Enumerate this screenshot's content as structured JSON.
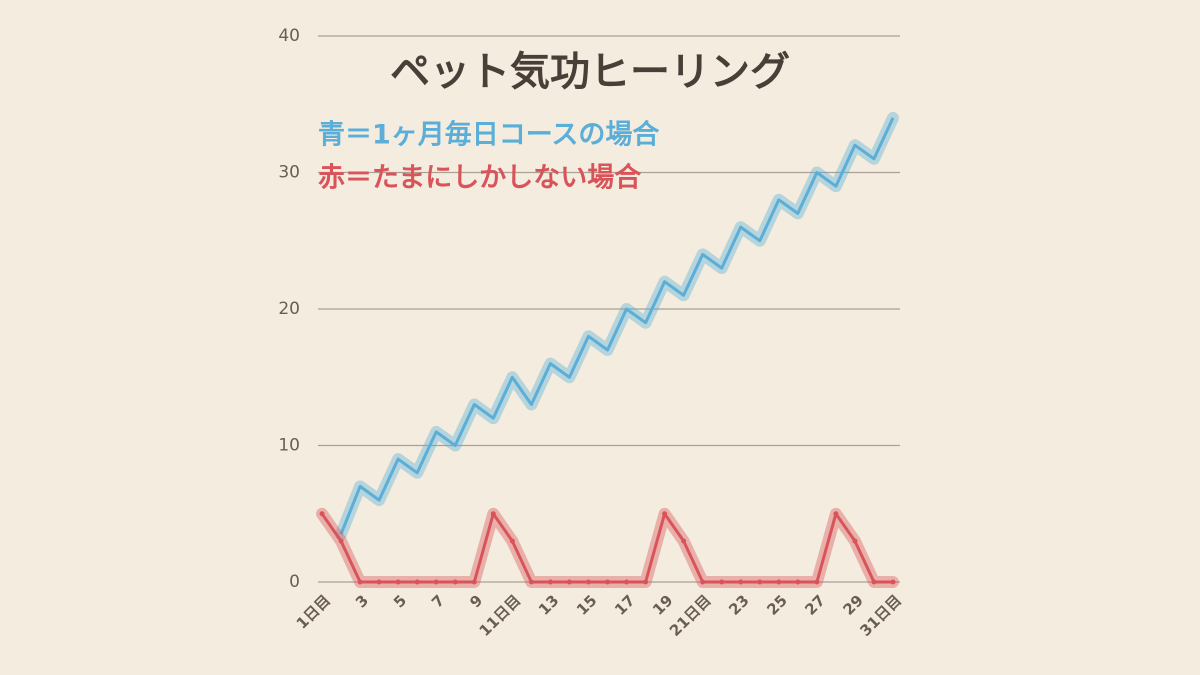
{
  "chart_data": {
    "type": "line",
    "title": "ペット気功ヒーリング",
    "categories": [
      "1日目",
      null,
      "3",
      null,
      "5",
      null,
      "7",
      null,
      "9",
      null,
      "11日目",
      null,
      "13",
      null,
      "15",
      null,
      "17",
      null,
      "19",
      null,
      "21日目",
      null,
      "23",
      null,
      "25",
      null,
      "27",
      null,
      "29",
      null,
      "31日目"
    ],
    "series": [
      {
        "name": "青＝1ヶ月毎日コースの場合",
        "color": "#5aaed8",
        "values": [
          null,
          3.5,
          7,
          6,
          9,
          8,
          11,
          10,
          13,
          12,
          15,
          13,
          16,
          15,
          18,
          17,
          20,
          19,
          22,
          21,
          24,
          23,
          26,
          25,
          28,
          27,
          30,
          29,
          32,
          31,
          34
        ]
      },
      {
        "name": "赤＝たまにしかしない場合",
        "color": "#d9545a",
        "values": [
          5,
          3,
          0,
          0,
          0,
          0,
          0,
          0,
          0,
          5,
          3,
          0,
          0,
          0,
          0,
          0,
          0,
          0,
          5,
          3,
          0,
          0,
          0,
          0,
          0,
          0,
          0,
          5,
          3,
          0,
          0
        ]
      }
    ],
    "ylim": [
      0,
      40
    ],
    "yticks": [
      0,
      10,
      20,
      30,
      40
    ],
    "grid": true
  }
}
